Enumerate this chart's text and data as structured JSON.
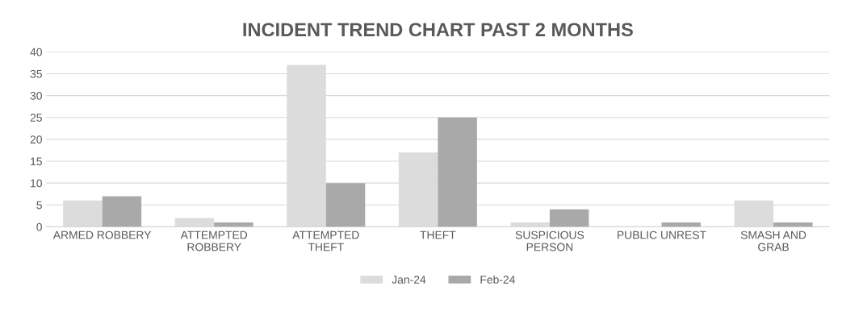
{
  "chart_data": {
    "type": "bar",
    "title": "INCIDENT TREND CHART PAST 2 MONTHS",
    "categories": [
      "ARMED ROBBERY",
      "ATTEMPTED\nROBBERY",
      "ATTEMPTED\nTHEFT",
      "THEFT",
      "SUSPICIOUS\nPERSON",
      "PUBLIC UNREST",
      "SMASH AND\nGRAB"
    ],
    "series": [
      {
        "name": "Jan-24",
        "color": "#dcdcdc",
        "values": [
          6,
          2,
          37,
          17,
          1,
          0,
          6
        ]
      },
      {
        "name": "Feb-24",
        "color": "#a9a9a9",
        "values": [
          7,
          1,
          10,
          25,
          4,
          1,
          1
        ]
      }
    ],
    "ylim": [
      0,
      40
    ],
    "yticks": [
      0,
      5,
      10,
      15,
      20,
      25,
      30,
      35,
      40
    ],
    "grid": "y",
    "legend": "bottom"
  }
}
